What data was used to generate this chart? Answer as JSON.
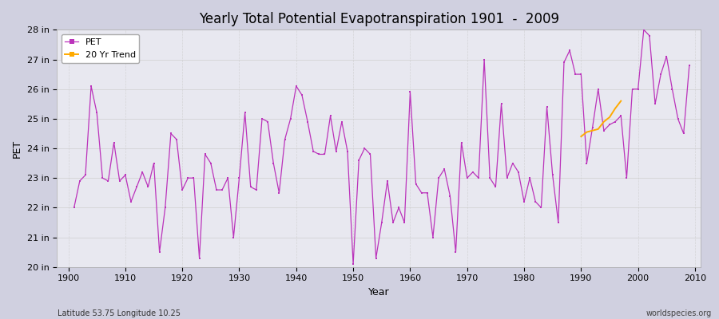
{
  "title": "Yearly Total Potential Evapotranspiration 1901  -  2009",
  "xlabel": "Year",
  "ylabel": "PET",
  "footnote_left": "Latitude 53.75 Longitude 10.25",
  "footnote_right": "worldspecies.org",
  "ylim": [
    20,
    28
  ],
  "ytick_labels": [
    "20 in",
    "21 in",
    "22 in",
    "23 in",
    "24 in",
    "25 in",
    "26 in",
    "27 in",
    "28 in"
  ],
  "ytick_values": [
    20,
    21,
    22,
    23,
    24,
    25,
    26,
    27,
    28
  ],
  "pet_color": "#bb33bb",
  "trend_color": "#ffaa00",
  "outer_bg": "#d0d0e0",
  "inner_bg": "#e8e8f0",
  "years": [
    1901,
    1902,
    1903,
    1904,
    1905,
    1906,
    1907,
    1908,
    1909,
    1910,
    1911,
    1912,
    1913,
    1914,
    1915,
    1916,
    1917,
    1918,
    1919,
    1920,
    1921,
    1922,
    1923,
    1924,
    1925,
    1926,
    1927,
    1928,
    1929,
    1930,
    1931,
    1932,
    1933,
    1934,
    1935,
    1936,
    1937,
    1938,
    1939,
    1940,
    1941,
    1942,
    1943,
    1944,
    1945,
    1946,
    1947,
    1948,
    1949,
    1950,
    1951,
    1952,
    1953,
    1954,
    1955,
    1956,
    1957,
    1958,
    1959,
    1960,
    1961,
    1962,
    1963,
    1964,
    1965,
    1966,
    1967,
    1968,
    1969,
    1970,
    1971,
    1972,
    1973,
    1974,
    1975,
    1976,
    1977,
    1978,
    1979,
    1980,
    1981,
    1982,
    1983,
    1984,
    1985,
    1986,
    1987,
    1988,
    1989,
    1990,
    1991,
    1992,
    1993,
    1994,
    1995,
    1996,
    1997,
    1998,
    1999,
    2000,
    2001,
    2002,
    2003,
    2004,
    2005,
    2006,
    2007,
    2008,
    2009
  ],
  "pet_values": [
    22.0,
    22.9,
    23.1,
    26.1,
    25.2,
    23.0,
    22.9,
    24.2,
    22.9,
    23.1,
    22.2,
    22.7,
    23.2,
    22.7,
    23.5,
    20.5,
    22.0,
    24.5,
    24.3,
    22.6,
    23.0,
    23.0,
    20.3,
    23.8,
    23.5,
    22.6,
    22.6,
    23.0,
    21.0,
    23.0,
    25.2,
    22.7,
    22.6,
    25.0,
    24.9,
    23.5,
    22.5,
    24.3,
    25.0,
    26.1,
    25.8,
    24.9,
    23.9,
    23.8,
    23.8,
    25.1,
    23.9,
    24.9,
    23.9,
    20.1,
    23.6,
    24.0,
    23.8,
    20.3,
    21.5,
    22.9,
    21.5,
    22.0,
    21.5,
    25.9,
    22.8,
    22.5,
    22.5,
    21.0,
    23.0,
    23.3,
    22.4,
    20.5,
    24.2,
    23.0,
    23.2,
    23.0,
    27.0,
    23.0,
    22.7,
    25.5,
    23.0,
    23.5,
    23.2,
    22.2,
    23.0,
    22.2,
    22.0,
    25.4,
    23.1,
    21.5,
    26.9,
    27.3,
    26.5,
    26.5,
    23.5,
    24.7,
    26.0,
    24.6,
    24.8,
    24.9,
    25.1,
    23.0,
    26.0,
    26.0,
    28.0,
    27.8,
    25.5,
    26.5,
    27.1,
    26.0,
    25.0,
    24.5,
    26.8
  ],
  "trend_years": [
    1990,
    1991,
    1992,
    1993,
    1994,
    1995,
    1996,
    1997
  ],
  "trend_values": [
    24.4,
    24.55,
    24.6,
    24.65,
    24.9,
    25.05,
    25.35,
    25.6
  ],
  "xlim_left": 1901,
  "xlim_right": 2011
}
